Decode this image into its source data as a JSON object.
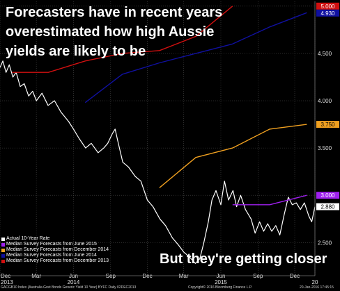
{
  "headline": "Forecasters have in recent years overestimated how high Aussie yields are likely to be",
  "subheadline": "But they're getting closer",
  "colors": {
    "background": "#000000",
    "grid": "#4a4a4a",
    "actual": "#ffffff",
    "june_2015": "#a020f0",
    "december_2014": "#f0a020",
    "june_2014": "#1010a0",
    "december_2013": "#d01010"
  },
  "chart_data": {
    "type": "line",
    "title": "",
    "xlabel": "",
    "ylabel": "",
    "ylim": [
      2.15,
      5.05
    ],
    "xlim": [
      "2013-12-01",
      "2016-01-20"
    ],
    "y_ticks": [
      "2.500",
      "3.000",
      "3.500",
      "4.000",
      "4.500",
      "5.000"
    ],
    "x_ticks": [
      {
        "date": "2013-12-01",
        "label": "Dec",
        "sub": "2013"
      },
      {
        "date": "2014-03-01",
        "label": "Mar",
        "sub": ""
      },
      {
        "date": "2014-06-01",
        "label": "Jun",
        "sub": "2014"
      },
      {
        "date": "2014-09-01",
        "label": "Sep",
        "sub": ""
      },
      {
        "date": "2014-12-01",
        "label": "Dec",
        "sub": ""
      },
      {
        "date": "2015-03-01",
        "label": "Mar",
        "sub": ""
      },
      {
        "date": "2015-06-01",
        "label": "Jun",
        "sub": "2015"
      },
      {
        "date": "2015-09-01",
        "label": "Sep",
        "sub": ""
      },
      {
        "date": "2015-12-01",
        "label": "Dec",
        "sub": ""
      },
      {
        "date": "2016-01-20",
        "label": "",
        "sub": "20"
      }
    ],
    "grid": true,
    "legend_position": "bottom-left",
    "last_value_labels": [
      {
        "series": "Median Survey Forecasts from December 2013",
        "label": "5.000",
        "value": 5.0
      },
      {
        "series": "Median Survey Forecasts from June 2014",
        "label": "4.930",
        "value": 4.93
      },
      {
        "series": "Median Survey Forecasts from December 2014",
        "label": "3.750",
        "value": 3.75
      },
      {
        "series": "Median Survey Forecasts from June 2015",
        "label": "3.000",
        "value": 3.0
      },
      {
        "series": "Actual 10-Year Rate",
        "label": "2.880",
        "value": 2.88
      }
    ],
    "series": [
      {
        "name": "Actual 10-Year Rate",
        "color": "#ffffff",
        "points": [
          [
            "2013-12-01",
            4.35
          ],
          [
            "2013-12-08",
            4.42
          ],
          [
            "2013-12-16",
            4.3
          ],
          [
            "2013-12-24",
            4.38
          ],
          [
            "2014-01-02",
            4.25
          ],
          [
            "2014-01-10",
            4.3
          ],
          [
            "2014-01-20",
            4.15
          ],
          [
            "2014-01-30",
            4.18
          ],
          [
            "2014-02-10",
            4.05
          ],
          [
            "2014-02-20",
            4.1
          ],
          [
            "2014-03-01",
            4.0
          ],
          [
            "2014-03-15",
            4.08
          ],
          [
            "2014-03-30",
            3.95
          ],
          [
            "2014-04-15",
            4.0
          ],
          [
            "2014-05-01",
            3.88
          ],
          [
            "2014-05-20",
            3.78
          ],
          [
            "2014-06-01",
            3.7
          ],
          [
            "2014-06-15",
            3.6
          ],
          [
            "2014-07-01",
            3.5
          ],
          [
            "2014-07-15",
            3.55
          ],
          [
            "2014-08-01",
            3.45
          ],
          [
            "2014-08-15",
            3.5
          ],
          [
            "2014-08-25",
            3.55
          ],
          [
            "2014-09-05",
            3.65
          ],
          [
            "2014-09-12",
            3.7
          ],
          [
            "2014-09-20",
            3.55
          ],
          [
            "2014-10-01",
            3.35
          ],
          [
            "2014-10-15",
            3.3
          ],
          [
            "2014-11-01",
            3.2
          ],
          [
            "2014-11-15",
            3.15
          ],
          [
            "2014-12-01",
            2.95
          ],
          [
            "2014-12-15",
            2.88
          ],
          [
            "2015-01-01",
            2.75
          ],
          [
            "2015-01-15",
            2.68
          ],
          [
            "2015-02-01",
            2.55
          ],
          [
            "2015-02-15",
            2.48
          ],
          [
            "2015-03-01",
            2.4
          ],
          [
            "2015-03-15",
            2.35
          ],
          [
            "2015-03-30",
            2.28
          ],
          [
            "2015-04-10",
            2.33
          ],
          [
            "2015-04-20",
            2.5
          ],
          [
            "2015-05-01",
            2.72
          ],
          [
            "2015-05-10",
            2.95
          ],
          [
            "2015-05-20",
            3.05
          ],
          [
            "2015-06-01",
            2.9
          ],
          [
            "2015-06-10",
            3.15
          ],
          [
            "2015-06-20",
            2.95
          ],
          [
            "2015-07-01",
            3.05
          ],
          [
            "2015-07-10",
            2.88
          ],
          [
            "2015-07-20",
            3.0
          ],
          [
            "2015-08-01",
            2.85
          ],
          [
            "2015-08-15",
            2.75
          ],
          [
            "2015-08-25",
            2.6
          ],
          [
            "2015-09-05",
            2.72
          ],
          [
            "2015-09-15",
            2.62
          ],
          [
            "2015-09-25",
            2.7
          ],
          [
            "2015-10-05",
            2.62
          ],
          [
            "2015-10-15",
            2.68
          ],
          [
            "2015-10-25",
            2.58
          ],
          [
            "2015-11-05",
            2.8
          ],
          [
            "2015-11-15",
            2.98
          ],
          [
            "2015-11-25",
            2.9
          ],
          [
            "2015-12-05",
            2.92
          ],
          [
            "2015-12-15",
            2.85
          ],
          [
            "2015-12-25",
            2.92
          ],
          [
            "2016-01-05",
            2.78
          ],
          [
            "2016-01-12",
            2.72
          ],
          [
            "2016-01-20",
            2.88
          ]
        ]
      },
      {
        "name": "Median Survey Forecasts from June 2015",
        "color": "#a020f0",
        "points": [
          [
            "2015-06-30",
            2.9
          ],
          [
            "2015-09-30",
            2.9
          ],
          [
            "2015-12-31",
            3.0
          ]
        ]
      },
      {
        "name": "Median Survey Forecasts from December 2014",
        "color": "#f0a020",
        "points": [
          [
            "2014-12-31",
            3.08
          ],
          [
            "2015-03-31",
            3.4
          ],
          [
            "2015-06-30",
            3.5
          ],
          [
            "2015-09-30",
            3.7
          ],
          [
            "2015-12-31",
            3.75
          ]
        ]
      },
      {
        "name": "Median Survey Forecasts from June 2014",
        "color": "#1010a0",
        "points": [
          [
            "2014-06-30",
            3.98
          ],
          [
            "2014-09-30",
            4.28
          ],
          [
            "2014-12-31",
            4.4
          ],
          [
            "2015-03-31",
            4.5
          ],
          [
            "2015-06-30",
            4.6
          ],
          [
            "2015-09-30",
            4.78
          ],
          [
            "2015-12-31",
            4.93
          ]
        ]
      },
      {
        "name": "Median Survey Forecasts from December 2013",
        "color": "#d01010",
        "points": [
          [
            "2013-12-31",
            4.3
          ],
          [
            "2014-03-31",
            4.3
          ],
          [
            "2014-06-30",
            4.42
          ],
          [
            "2014-09-30",
            4.5
          ],
          [
            "2014-12-31",
            4.53
          ],
          [
            "2015-03-31",
            4.68
          ],
          [
            "2015-06-30",
            5.0
          ]
        ]
      }
    ]
  },
  "legend": {
    "items": [
      {
        "label": "Actual 10-Year Rate",
        "color": "#ffffff"
      },
      {
        "label": "Median Survey Forecasts from June 2015",
        "color": "#a020f0"
      },
      {
        "label": "Median Survey Forecasts from December 2014",
        "color": "#f0a020"
      },
      {
        "label": "Median Survey Forecasts from June 2014",
        "color": "#1010a0"
      },
      {
        "label": "Median Survey Forecasts from December 2013",
        "color": "#d01010"
      }
    ]
  },
  "footer": {
    "left": "GACGB10 Index (Australia Govt Bonds Generic Yield 10 Year) BYFC  Daily 02DEC2013",
    "center": "Copyright© 2016 Bloomberg Finance L.P.",
    "right": "20-Jan-2016 17:45:15"
  }
}
